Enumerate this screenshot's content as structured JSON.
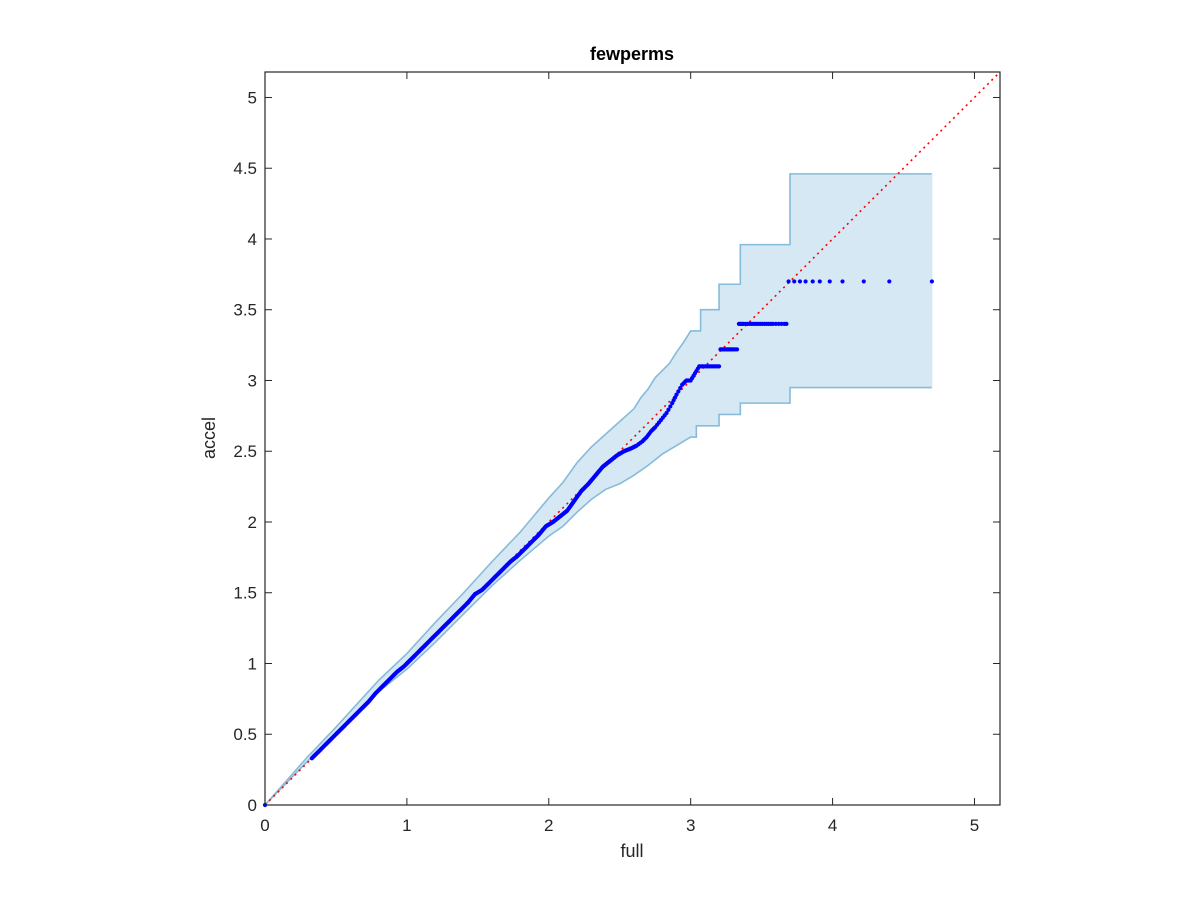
{
  "chart_data": {
    "type": "scatter",
    "title": "fewperms",
    "xlabel": "full",
    "ylabel": "accel",
    "xlim": [
      0,
      5.18
    ],
    "ylim": [
      0,
      5.18
    ],
    "xticks": [
      "0",
      "1",
      "2",
      "3",
      "4",
      "5"
    ],
    "yticks": [
      "0",
      "0.5",
      "1",
      "1.5",
      "2",
      "2.5",
      "3",
      "3.5",
      "4",
      "4.5",
      "5"
    ],
    "grid": false,
    "legend": "none",
    "colors": {
      "points": "#0000ff",
      "reference_line": "#ff0000",
      "band_fill": "#d6e8f4",
      "band_edge": "#86bbd9",
      "axes": "#262626"
    },
    "reference_line": {
      "style": "dotted",
      "x": [
        0,
        5.18
      ],
      "y": [
        0,
        5.18
      ]
    },
    "band": {
      "upper": [
        [
          0,
          0
        ],
        [
          0.3,
          0.34
        ],
        [
          0.5,
          0.55
        ],
        [
          0.8,
          0.88
        ],
        [
          1.0,
          1.07
        ],
        [
          1.2,
          1.29
        ],
        [
          1.4,
          1.5
        ],
        [
          1.6,
          1.72
        ],
        [
          1.8,
          1.93
        ],
        [
          2.0,
          2.17
        ],
        [
          2.1,
          2.28
        ],
        [
          2.2,
          2.42
        ],
        [
          2.3,
          2.53
        ],
        [
          2.4,
          2.62
        ],
        [
          2.5,
          2.71
        ],
        [
          2.6,
          2.8
        ],
        [
          2.65,
          2.88
        ],
        [
          2.7,
          2.94
        ],
        [
          2.75,
          3.02
        ],
        [
          2.8,
          3.07
        ],
        [
          2.85,
          3.12
        ],
        [
          2.9,
          3.2
        ],
        [
          2.95,
          3.27
        ],
        [
          3.0,
          3.35
        ],
        [
          3.07,
          3.35
        ],
        [
          3.07,
          3.5
        ],
        [
          3.2,
          3.5
        ],
        [
          3.2,
          3.68
        ],
        [
          3.35,
          3.68
        ],
        [
          3.35,
          3.96
        ],
        [
          3.7,
          3.96
        ],
        [
          3.7,
          4.46
        ],
        [
          4.7,
          4.46
        ]
      ],
      "lower": [
        [
          0,
          0
        ],
        [
          0.3,
          0.31
        ],
        [
          0.5,
          0.51
        ],
        [
          0.8,
          0.8
        ],
        [
          1.0,
          0.96
        ],
        [
          1.2,
          1.15
        ],
        [
          1.4,
          1.35
        ],
        [
          1.6,
          1.55
        ],
        [
          1.8,
          1.73
        ],
        [
          2.0,
          1.9
        ],
        [
          2.1,
          1.97
        ],
        [
          2.2,
          2.07
        ],
        [
          2.3,
          2.16
        ],
        [
          2.4,
          2.23
        ],
        [
          2.5,
          2.27
        ],
        [
          2.6,
          2.33
        ],
        [
          2.7,
          2.4
        ],
        [
          2.8,
          2.48
        ],
        [
          2.9,
          2.54
        ],
        [
          3.0,
          2.6
        ],
        [
          3.04,
          2.6
        ],
        [
          3.04,
          2.68
        ],
        [
          3.2,
          2.68
        ],
        [
          3.2,
          2.76
        ],
        [
          3.35,
          2.76
        ],
        [
          3.35,
          2.84
        ],
        [
          3.7,
          2.84
        ],
        [
          3.7,
          2.95
        ],
        [
          4.7,
          2.95
        ]
      ]
    },
    "points": {
      "x": [
        0,
        0.33,
        0.38,
        0.43,
        0.48,
        0.53,
        0.58,
        0.63,
        0.68,
        0.73,
        0.78,
        0.83,
        0.88,
        0.93,
        0.98,
        1.03,
        1.08,
        1.13,
        1.18,
        1.23,
        1.28,
        1.33,
        1.38,
        1.43,
        1.48,
        1.53,
        1.58,
        1.63,
        1.68,
        1.73,
        1.78,
        1.83,
        1.88,
        1.93,
        1.98,
        2.03,
        2.08,
        2.13,
        2.18,
        2.23,
        2.28,
        2.33,
        2.38,
        2.43,
        2.48,
        2.53,
        2.58,
        2.62,
        2.66,
        2.69,
        2.72,
        2.75,
        2.79,
        2.83,
        2.87,
        2.9,
        2.94,
        2.97,
        3.0,
        3.03,
        3.06,
        3.09,
        3.12,
        3.15,
        3.18,
        3.21,
        3.24,
        3.27,
        3.3,
        3.34,
        3.37,
        3.4,
        3.43,
        3.46,
        3.49,
        3.52,
        3.55,
        3.58,
        3.62,
        3.66,
        3.69,
        3.73,
        3.77,
        3.81,
        3.86,
        3.91,
        3.98,
        4.07,
        4.22,
        4.4,
        4.7
      ],
      "y": [
        0,
        0.33,
        0.38,
        0.43,
        0.48,
        0.53,
        0.58,
        0.63,
        0.68,
        0.73,
        0.79,
        0.84,
        0.89,
        0.94,
        0.98,
        1.03,
        1.08,
        1.13,
        1.18,
        1.23,
        1.28,
        1.33,
        1.38,
        1.43,
        1.49,
        1.52,
        1.57,
        1.62,
        1.67,
        1.72,
        1.76,
        1.81,
        1.86,
        1.91,
        1.97,
        2.0,
        2.04,
        2.08,
        2.15,
        2.22,
        2.27,
        2.33,
        2.39,
        2.43,
        2.47,
        2.5,
        2.52,
        2.54,
        2.57,
        2.6,
        2.64,
        2.67,
        2.72,
        2.77,
        2.84,
        2.9,
        2.97,
        3.0,
        3.0,
        3.05,
        3.1,
        3.1,
        3.1,
        3.1,
        3.1,
        3.22,
        3.22,
        3.22,
        3.22,
        3.4,
        3.4,
        3.4,
        3.4,
        3.4,
        3.4,
        3.4,
        3.4,
        3.4,
        3.4,
        3.4,
        3.7,
        3.7,
        3.7,
        3.7,
        3.7,
        3.7,
        3.7,
        3.7,
        3.7,
        3.7,
        3.7
      ]
    }
  }
}
